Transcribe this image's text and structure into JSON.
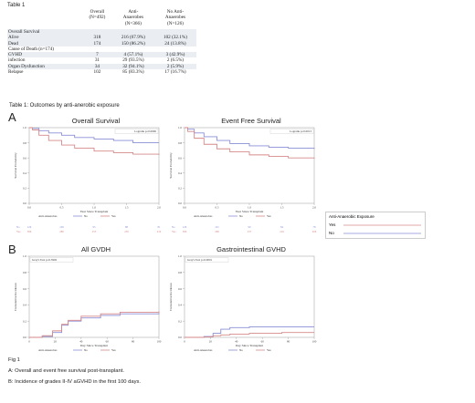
{
  "table": {
    "caption": "Table 1",
    "headers": [
      "",
      "Overall\n(N=492)",
      "Anti-\nAnaerobes\n(N=366)",
      "No Anti-\nAnaerobes\n(N=126)"
    ],
    "rows": [
      {
        "label": "Overall Survival",
        "v": [
          "",
          "",
          ""
        ],
        "indent": 0,
        "shade": true
      },
      {
        "label": "Alive",
        "v": [
          "318",
          "216 (67.9%)",
          "102 (32.1%)"
        ],
        "indent": 1,
        "shade": true
      },
      {
        "label": "Dead",
        "v": [
          "174",
          "150 (86.2%)",
          "24 (13.8%)"
        ],
        "indent": 1,
        "shade": true
      },
      {
        "label": "Cause of Death (n=174)",
        "v": [
          "",
          "",
          ""
        ],
        "indent": 0,
        "shade": false
      },
      {
        "label": "GVHD",
        "v": [
          "7",
          "4 (57.1%)",
          "3 (42.9%)"
        ],
        "indent": 1,
        "shade": true
      },
      {
        "label": "infection",
        "v": [
          "31",
          "29 (93.5%)",
          "2 (6.5%)"
        ],
        "indent": 1,
        "shade": false
      },
      {
        "label": "Organ Dysfunction",
        "v": [
          "34",
          "32 (94.1%)",
          "2 (5.9%)"
        ],
        "indent": 1,
        "shade": true
      },
      {
        "label": "Relapse",
        "v": [
          "102",
          "85 (83.3%)",
          "17 (16.7%)"
        ],
        "indent": 1,
        "shade": false
      }
    ],
    "note": "Table 1: Outcomes by anti-anerobic exposure"
  },
  "figure": {
    "panel_a": "A",
    "panel_b": "B",
    "legend": {
      "title": "Anti-Anaerobic Exposure",
      "yes": "Yes",
      "no": "No"
    },
    "caption_label": "Fig 1",
    "caption_a": "A: Overall and event free survival post-transplant.",
    "caption_b": "B: Incidence of grades II-IV aGVHD in the first 100 days."
  },
  "chart_data": [
    {
      "type": "line",
      "title": "Overall Survival",
      "xlabel": "Year Since Transplant",
      "ylabel": "Survival Probability",
      "test": "Logrank p=0.0006",
      "xlim": [
        0,
        2
      ],
      "ylim": [
        0,
        1
      ],
      "xticks": [
        "0.0",
        "0.5",
        "1.0",
        "1.5",
        "2.0"
      ],
      "yticks": [
        "0.0",
        "0.2",
        "0.4",
        "0.6",
        "0.8",
        "1.0"
      ],
      "series": [
        {
          "name": "No",
          "color": "#8a8fd6",
          "points": [
            [
              0,
              1.0
            ],
            [
              0.05,
              0.99
            ],
            [
              0.15,
              0.96
            ],
            [
              0.3,
              0.93
            ],
            [
              0.5,
              0.9
            ],
            [
              0.7,
              0.87
            ],
            [
              1.0,
              0.85
            ],
            [
              1.3,
              0.83
            ],
            [
              1.6,
              0.8
            ],
            [
              2.0,
              0.8
            ]
          ]
        },
        {
          "name": "Yes",
          "color": "#d68a8a",
          "points": [
            [
              0,
              1.0
            ],
            [
              0.05,
              0.97
            ],
            [
              0.15,
              0.9
            ],
            [
              0.3,
              0.83
            ],
            [
              0.5,
              0.77
            ],
            [
              0.7,
              0.73
            ],
            [
              1.0,
              0.69
            ],
            [
              1.3,
              0.67
            ],
            [
              1.6,
              0.65
            ],
            [
              2.0,
              0.64
            ]
          ]
        }
      ],
      "risk_label": "Anti-Anaerobes",
      "risk_table": {
        "No": [
          "126",
          "109",
          "95",
          "88",
          "81"
        ],
        "Yes": [
          "366",
          "289",
          "253",
          "230",
          "219"
        ]
      }
    },
    {
      "type": "line",
      "title": "Event Free Survival",
      "xlabel": "Year Since Transplant",
      "ylabel": "Survival Probability",
      "test": "Logrank p=0.0013",
      "xlim": [
        0,
        2
      ],
      "ylim": [
        0,
        1
      ],
      "xticks": [
        "0.0",
        "0.5",
        "1.0",
        "1.5",
        "2.0"
      ],
      "yticks": [
        "0.0",
        "0.2",
        "0.4",
        "0.6",
        "0.8",
        "1.0"
      ],
      "series": [
        {
          "name": "No",
          "color": "#8a8fd6",
          "points": [
            [
              0,
              1.0
            ],
            [
              0.05,
              0.98
            ],
            [
              0.15,
              0.93
            ],
            [
              0.3,
              0.88
            ],
            [
              0.5,
              0.83
            ],
            [
              0.7,
              0.79
            ],
            [
              1.0,
              0.76
            ],
            [
              1.3,
              0.74
            ],
            [
              1.6,
              0.73
            ],
            [
              2.0,
              0.72
            ]
          ]
        },
        {
          "name": "Yes",
          "color": "#d68a8a",
          "points": [
            [
              0,
              1.0
            ],
            [
              0.05,
              0.95
            ],
            [
              0.15,
              0.86
            ],
            [
              0.3,
              0.78
            ],
            [
              0.5,
              0.72
            ],
            [
              0.7,
              0.68
            ],
            [
              1.0,
              0.64
            ],
            [
              1.3,
              0.62
            ],
            [
              1.6,
              0.6
            ],
            [
              2.0,
              0.59
            ]
          ]
        }
      ],
      "risk_label": "Anti-Anaerobes",
      "risk_table": {
        "No": [
          "126",
          "101",
          "90",
          "84",
          "78"
        ],
        "Yes": [
          "366",
          "268",
          "237",
          "216",
          "206"
        ]
      }
    },
    {
      "type": "line",
      "title": "All GVDH",
      "xlabel": "Day Since Transplant",
      "ylabel": "Cumulative Incidence",
      "test": "Gray's Test p=0.3902",
      "xlim": [
        0,
        100
      ],
      "ylim": [
        0,
        1
      ],
      "xticks": [
        "0",
        "20",
        "40",
        "60",
        "80",
        "100"
      ],
      "yticks": [
        "0.0",
        "0.2",
        "0.4",
        "0.6",
        "0.8",
        "1.0"
      ],
      "series": [
        {
          "name": "No",
          "color": "#8a8fd6",
          "points": [
            [
              0,
              0
            ],
            [
              10,
              0.01
            ],
            [
              18,
              0.06
            ],
            [
              25,
              0.15
            ],
            [
              30,
              0.2
            ],
            [
              40,
              0.24
            ],
            [
              55,
              0.27
            ],
            [
              70,
              0.29
            ],
            [
              100,
              0.3
            ]
          ]
        },
        {
          "name": "Yes",
          "color": "#d68a8a",
          "points": [
            [
              0,
              0
            ],
            [
              10,
              0.02
            ],
            [
              18,
              0.08
            ],
            [
              25,
              0.16
            ],
            [
              30,
              0.21
            ],
            [
              40,
              0.26
            ],
            [
              55,
              0.29
            ],
            [
              70,
              0.31
            ],
            [
              100,
              0.32
            ]
          ]
        }
      ],
      "risk_label": "Anti-Anaerobes"
    },
    {
      "type": "line",
      "title": "Gastrointestinal GVHD",
      "xlabel": "Day Since Transplant",
      "ylabel": "Cumulative Incidence",
      "test": "Gray's Test p=0.0001",
      "xlim": [
        0,
        100
      ],
      "ylim": [
        0,
        1
      ],
      "xticks": [
        "0",
        "20",
        "40",
        "60",
        "80",
        "100"
      ],
      "yticks": [
        "0.0",
        "0.2",
        "0.4",
        "0.6",
        "0.8",
        "1.0"
      ],
      "series": [
        {
          "name": "No",
          "color": "#8a8fd6",
          "points": [
            [
              0,
              0
            ],
            [
              15,
              0.01
            ],
            [
              22,
              0.05
            ],
            [
              28,
              0.1
            ],
            [
              35,
              0.12
            ],
            [
              50,
              0.13
            ],
            [
              75,
              0.13
            ],
            [
              100,
              0.13
            ]
          ]
        },
        {
          "name": "Yes",
          "color": "#d68a8a",
          "points": [
            [
              0,
              0
            ],
            [
              15,
              0.005
            ],
            [
              22,
              0.02
            ],
            [
              28,
              0.03
            ],
            [
              35,
              0.04
            ],
            [
              50,
              0.05
            ],
            [
              75,
              0.06
            ],
            [
              100,
              0.06
            ]
          ]
        }
      ],
      "risk_label": "Anti-Anaerobes"
    }
  ]
}
